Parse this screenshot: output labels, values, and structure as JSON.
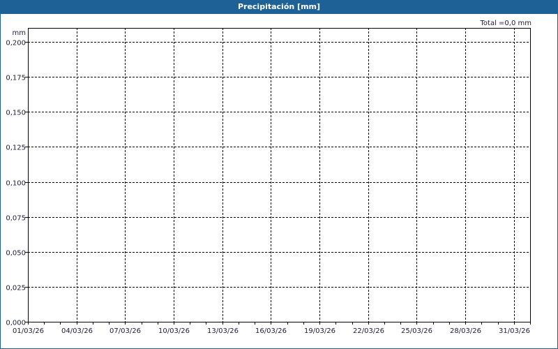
{
  "window": {
    "title": "Precipitación [mm]"
  },
  "total_label": "Total =0,0 mm",
  "colors": {
    "titlebar": "#1d6196",
    "grid": "#000000",
    "axis": "#000000"
  },
  "chart_data": {
    "type": "bar",
    "title": "Precipitación [mm]",
    "ylabel": "mm",
    "xlabel": "",
    "x_range": [
      "01/03/26",
      "01/04/26"
    ],
    "ylim": [
      0,
      0.21
    ],
    "y_ticks": [
      "0,000",
      "0,025",
      "0,050",
      "0,075",
      "0,100",
      "0,125",
      "0,150",
      "0,175",
      "0,200"
    ],
    "y_tick_values": [
      0,
      0.025,
      0.05,
      0.075,
      0.1,
      0.125,
      0.15,
      0.175,
      0.2
    ],
    "x_ticks": [
      "01/03/26",
      "04/03/26",
      "07/03/26",
      "10/03/26",
      "13/03/26",
      "16/03/26",
      "19/03/26",
      "22/03/26",
      "25/03/26",
      "28/03/26",
      "31/03/26"
    ],
    "x_tick_days": [
      1,
      4,
      7,
      10,
      13,
      16,
      19,
      22,
      25,
      28,
      31
    ],
    "x_minor_tick_interval_days": 1,
    "grid": true,
    "categories": [],
    "values": []
  }
}
